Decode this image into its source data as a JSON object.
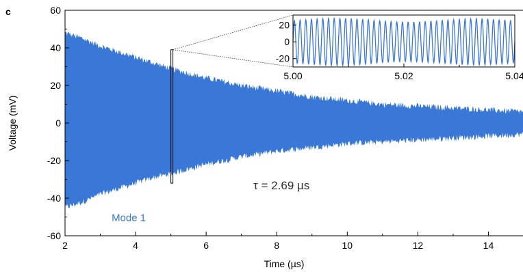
{
  "panel_label": "c",
  "chart_data": [
    {
      "type": "line",
      "role": "main",
      "xlabel": "Time (µs)",
      "ylabel": "Voltage (mV)",
      "xlim": [
        2,
        15
      ],
      "ylim": [
        -60,
        60
      ],
      "xticks": [
        2,
        4,
        6,
        8,
        10,
        12,
        14
      ],
      "xtick_labels": [
        "2",
        "4",
        "6",
        "8",
        "10",
        "12",
        "14"
      ],
      "yticks": [
        -60,
        -40,
        -20,
        0,
        20,
        40,
        60
      ],
      "ytick_labels": [
        "-60",
        "-40",
        "-20",
        "0",
        "20",
        "40",
        "60"
      ],
      "grid": false,
      "series": [
        {
          "name": "Mode 1",
          "color": "#3a78d8",
          "envelope": {
            "x": [
              2.0,
              2.5,
              3.0,
              3.5,
              4.0,
              4.5,
              5.0,
              6.0,
              7.0,
              8.0,
              9.0,
              10.0,
              11.0,
              12.0,
              13.0,
              14.0,
              15.0
            ],
            "upper": [
              48,
              45,
              41,
              38,
              35,
              32,
              29,
              24,
              20,
              17,
              14,
              12,
              10,
              9,
              8,
              7,
              6
            ],
            "lower": [
              -45,
              -42,
              -38,
              -35,
              -32,
              -29,
              -27,
              -22,
              -18,
              -15,
              -13,
              -11,
              -10,
              -9,
              -8,
              -7,
              -6
            ]
          }
        }
      ],
      "annotations": [
        {
          "text": "τ = 2.69 µs",
          "x": 8.6,
          "y": -33,
          "color": "#333333"
        },
        {
          "text": "Mode 1",
          "x": 4.0,
          "y": -50,
          "color": "#3a78d8"
        }
      ],
      "zoom_window": {
        "x": [
          5.0,
          5.04
        ],
        "y": [
          -32,
          39
        ]
      }
    },
    {
      "type": "line",
      "role": "inset",
      "xlim": [
        5.0,
        5.04
      ],
      "ylim": [
        -30,
        32
      ],
      "xticks": [
        5.0,
        5.02,
        5.04
      ],
      "xtick_labels": [
        "5.00",
        "5.02",
        "5.04"
      ],
      "yticks": [
        -20,
        0,
        20
      ],
      "ytick_labels": [
        "-20",
        "0",
        "20"
      ],
      "series": [
        {
          "name": "Mode 1",
          "color": "#3a78d8",
          "frequency_mhz": 975,
          "amplitude_mv": 26
        }
      ]
    }
  ]
}
